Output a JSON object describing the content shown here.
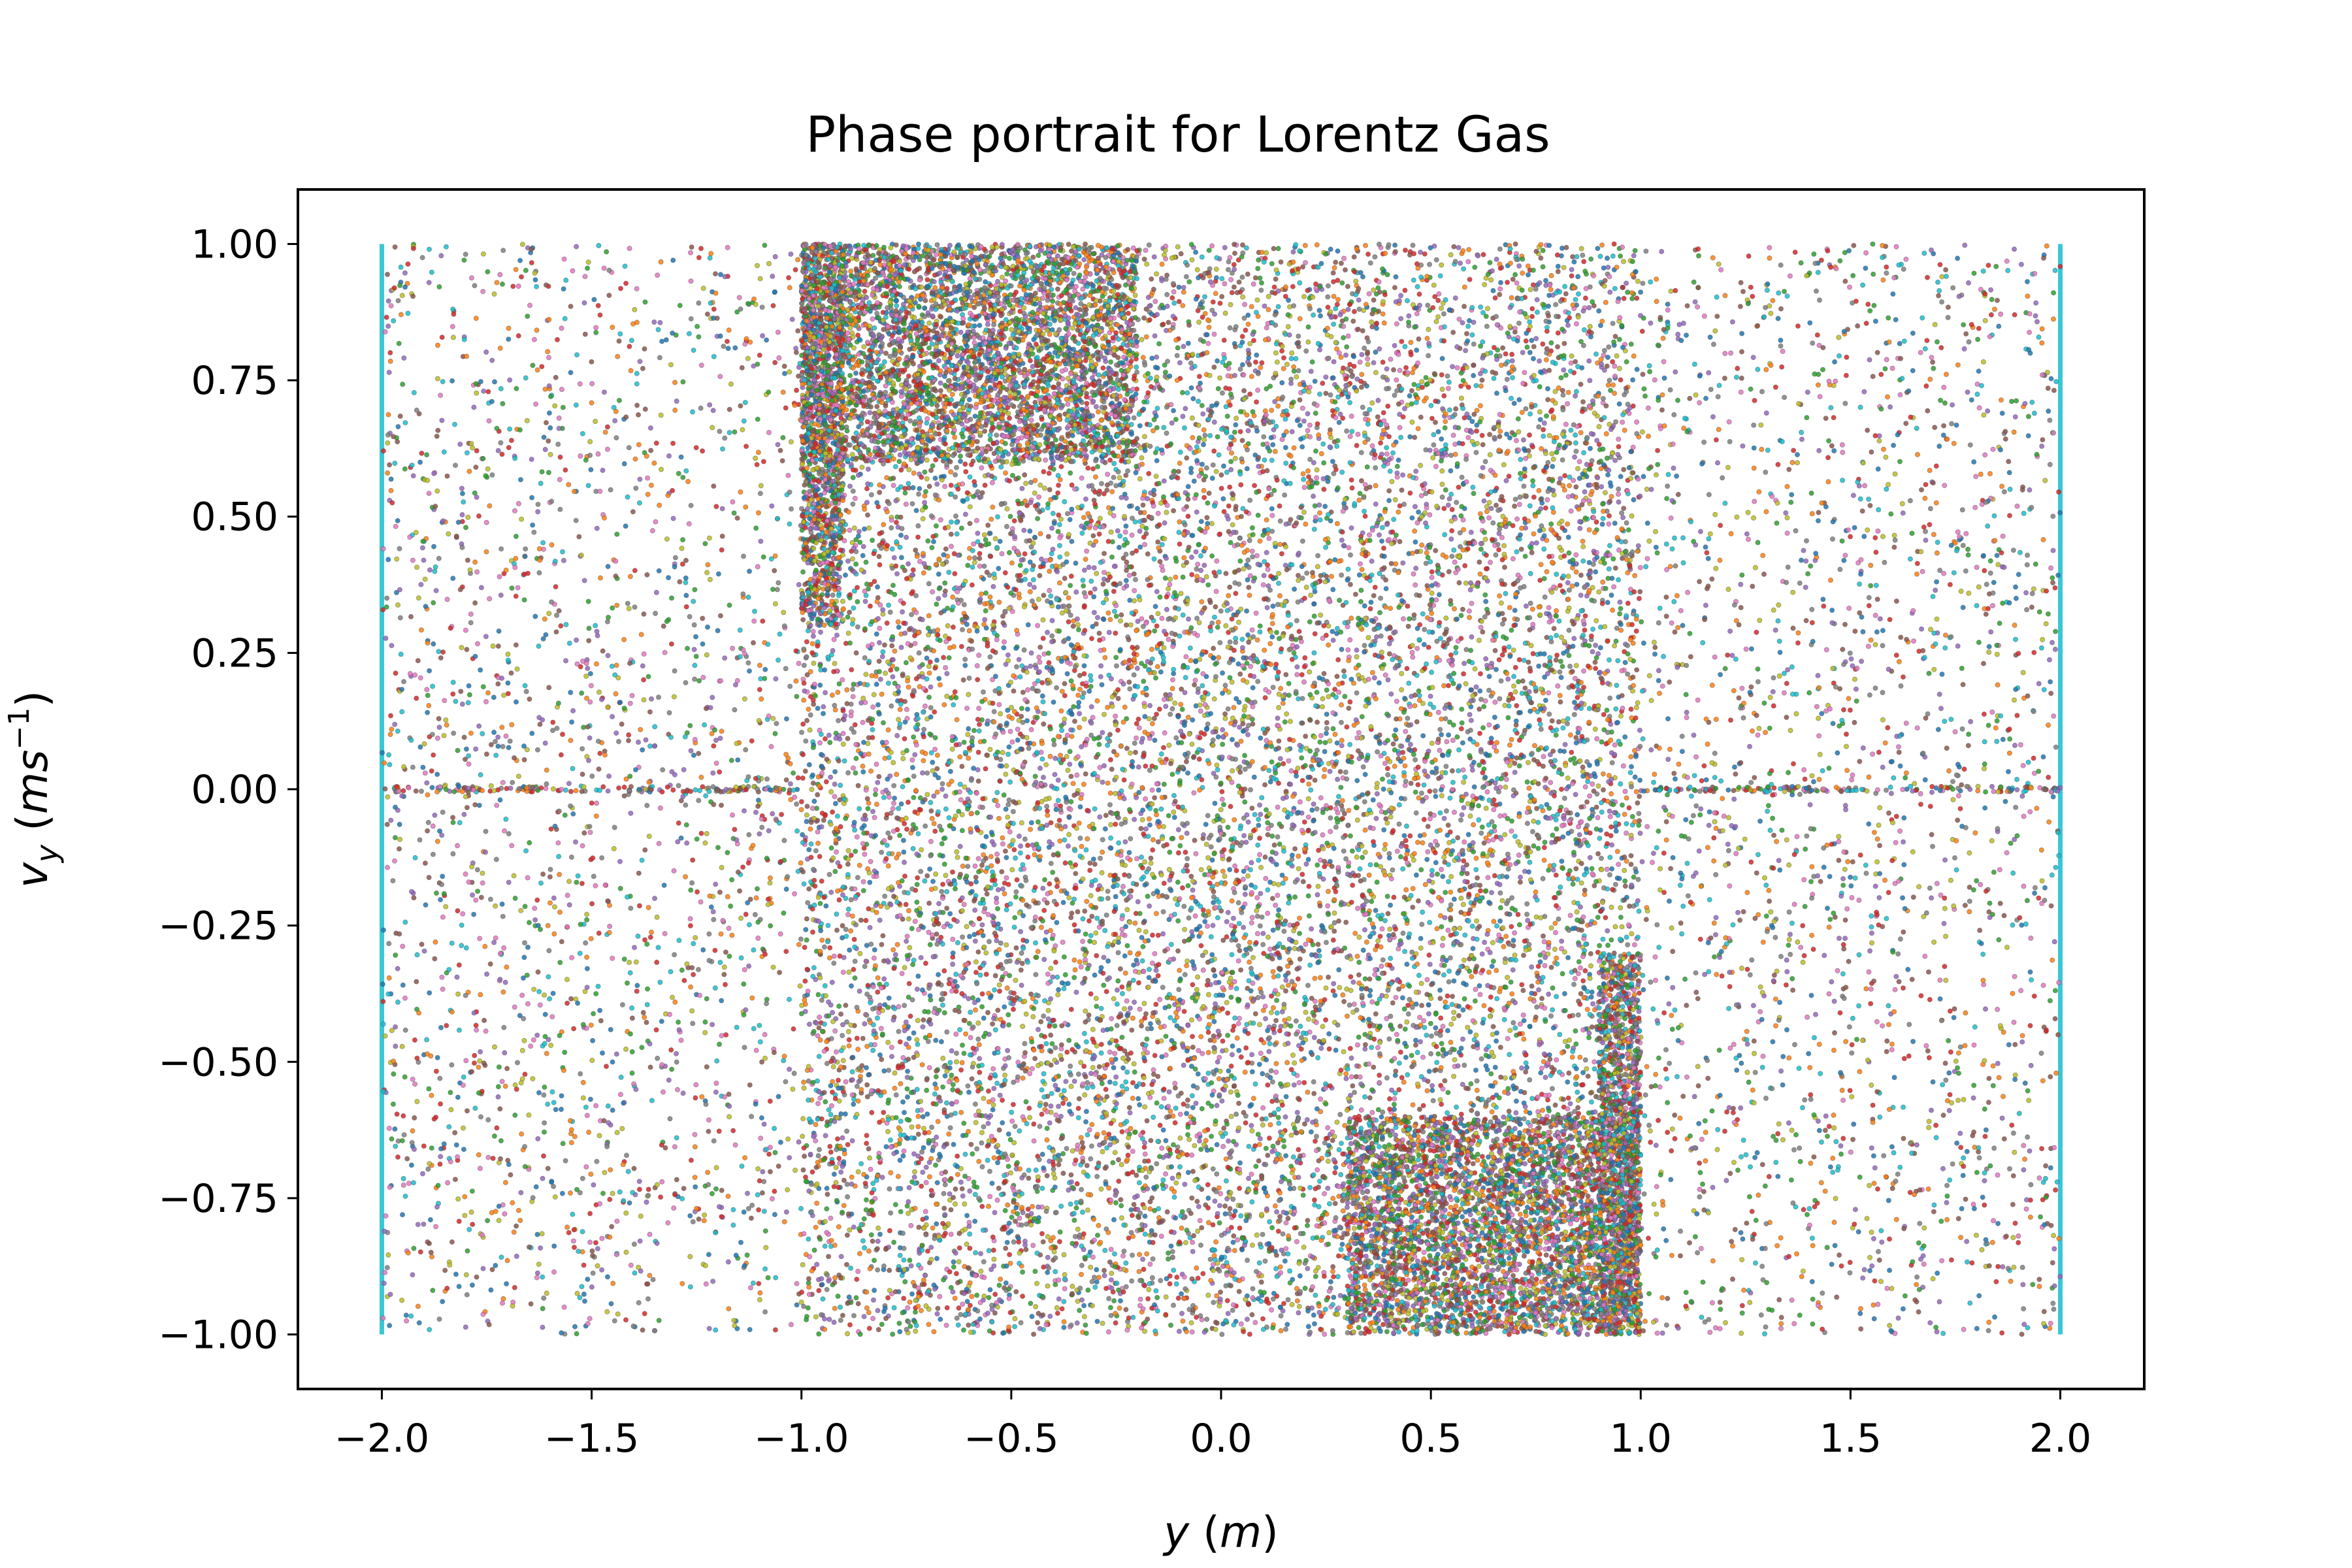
{
  "chart_data": {
    "type": "scatter",
    "title": "Phase portrait for Lorentz Gas",
    "xlabel": "y (m)",
    "ylabel": "v_y (ms^-1)",
    "xlim": [
      -2.2,
      2.2
    ],
    "ylim": [
      -1.1,
      1.1
    ],
    "xticks": [
      -2.0,
      -1.5,
      -1.0,
      -0.5,
      0.0,
      0.5,
      1.0,
      1.5,
      2.0
    ],
    "yticks": [
      -1.0,
      -0.75,
      -0.5,
      -0.25,
      0.0,
      0.25,
      0.5,
      0.75,
      1.0
    ],
    "xtick_labels": [
      "−2.0",
      "−1.5",
      "−1.0",
      "−0.5",
      "0.0",
      "0.5",
      "1.0",
      "1.5",
      "2.0"
    ],
    "ytick_labels": [
      "−1.00",
      "−0.75",
      "−0.50",
      "−0.25",
      "0.00",
      "0.25",
      "0.50",
      "0.75",
      "1.00"
    ],
    "grid": false,
    "legend": "none",
    "walls": [
      -2.0,
      2.0
    ],
    "series_colors": [
      "#1f77b4",
      "#ff7f0e",
      "#2ca02c",
      "#d62728",
      "#9467bd",
      "#8c564b",
      "#e377c2",
      "#7f7f7f",
      "#bcbd22",
      "#17becf"
    ],
    "point_regions": [
      {
        "x": [
          -2.0,
          2.0
        ],
        "y": [
          -1.0,
          1.0
        ],
        "count": 9000
      },
      {
        "x": [
          -1.0,
          1.0
        ],
        "y": [
          -1.0,
          1.0
        ],
        "count": 10000
      },
      {
        "x": [
          -1.0,
          -0.2
        ],
        "y": [
          0.6,
          1.0
        ],
        "count": 3500
      },
      {
        "x": [
          0.3,
          1.0
        ],
        "y": [
          -1.0,
          -0.6
        ],
        "count": 3500
      },
      {
        "x": [
          -1.0,
          -0.9
        ],
        "y": [
          0.3,
          1.0
        ],
        "count": 1200
      },
      {
        "x": [
          0.9,
          1.0
        ],
        "y": [
          -1.0,
          -0.3
        ],
        "count": 1200
      },
      {
        "x": [
          -2.0,
          -1.0
        ],
        "y": [
          -0.005,
          0.005
        ],
        "count": 150
      },
      {
        "x": [
          1.0,
          2.0
        ],
        "y": [
          -0.005,
          0.005
        ],
        "count": 150
      }
    ]
  },
  "labels": {
    "title": "Phase portrait for Lorentz Gas",
    "xlabel_var": "y",
    "xlabel_unit_open": " (",
    "xlabel_unit": "m",
    "xlabel_unit_close": ")",
    "ylabel_var": "v",
    "ylabel_sub": "y",
    "ylabel_unit_open": " (",
    "ylabel_unit": "ms",
    "ylabel_sup": "−1",
    "ylabel_unit_close": ")"
  }
}
